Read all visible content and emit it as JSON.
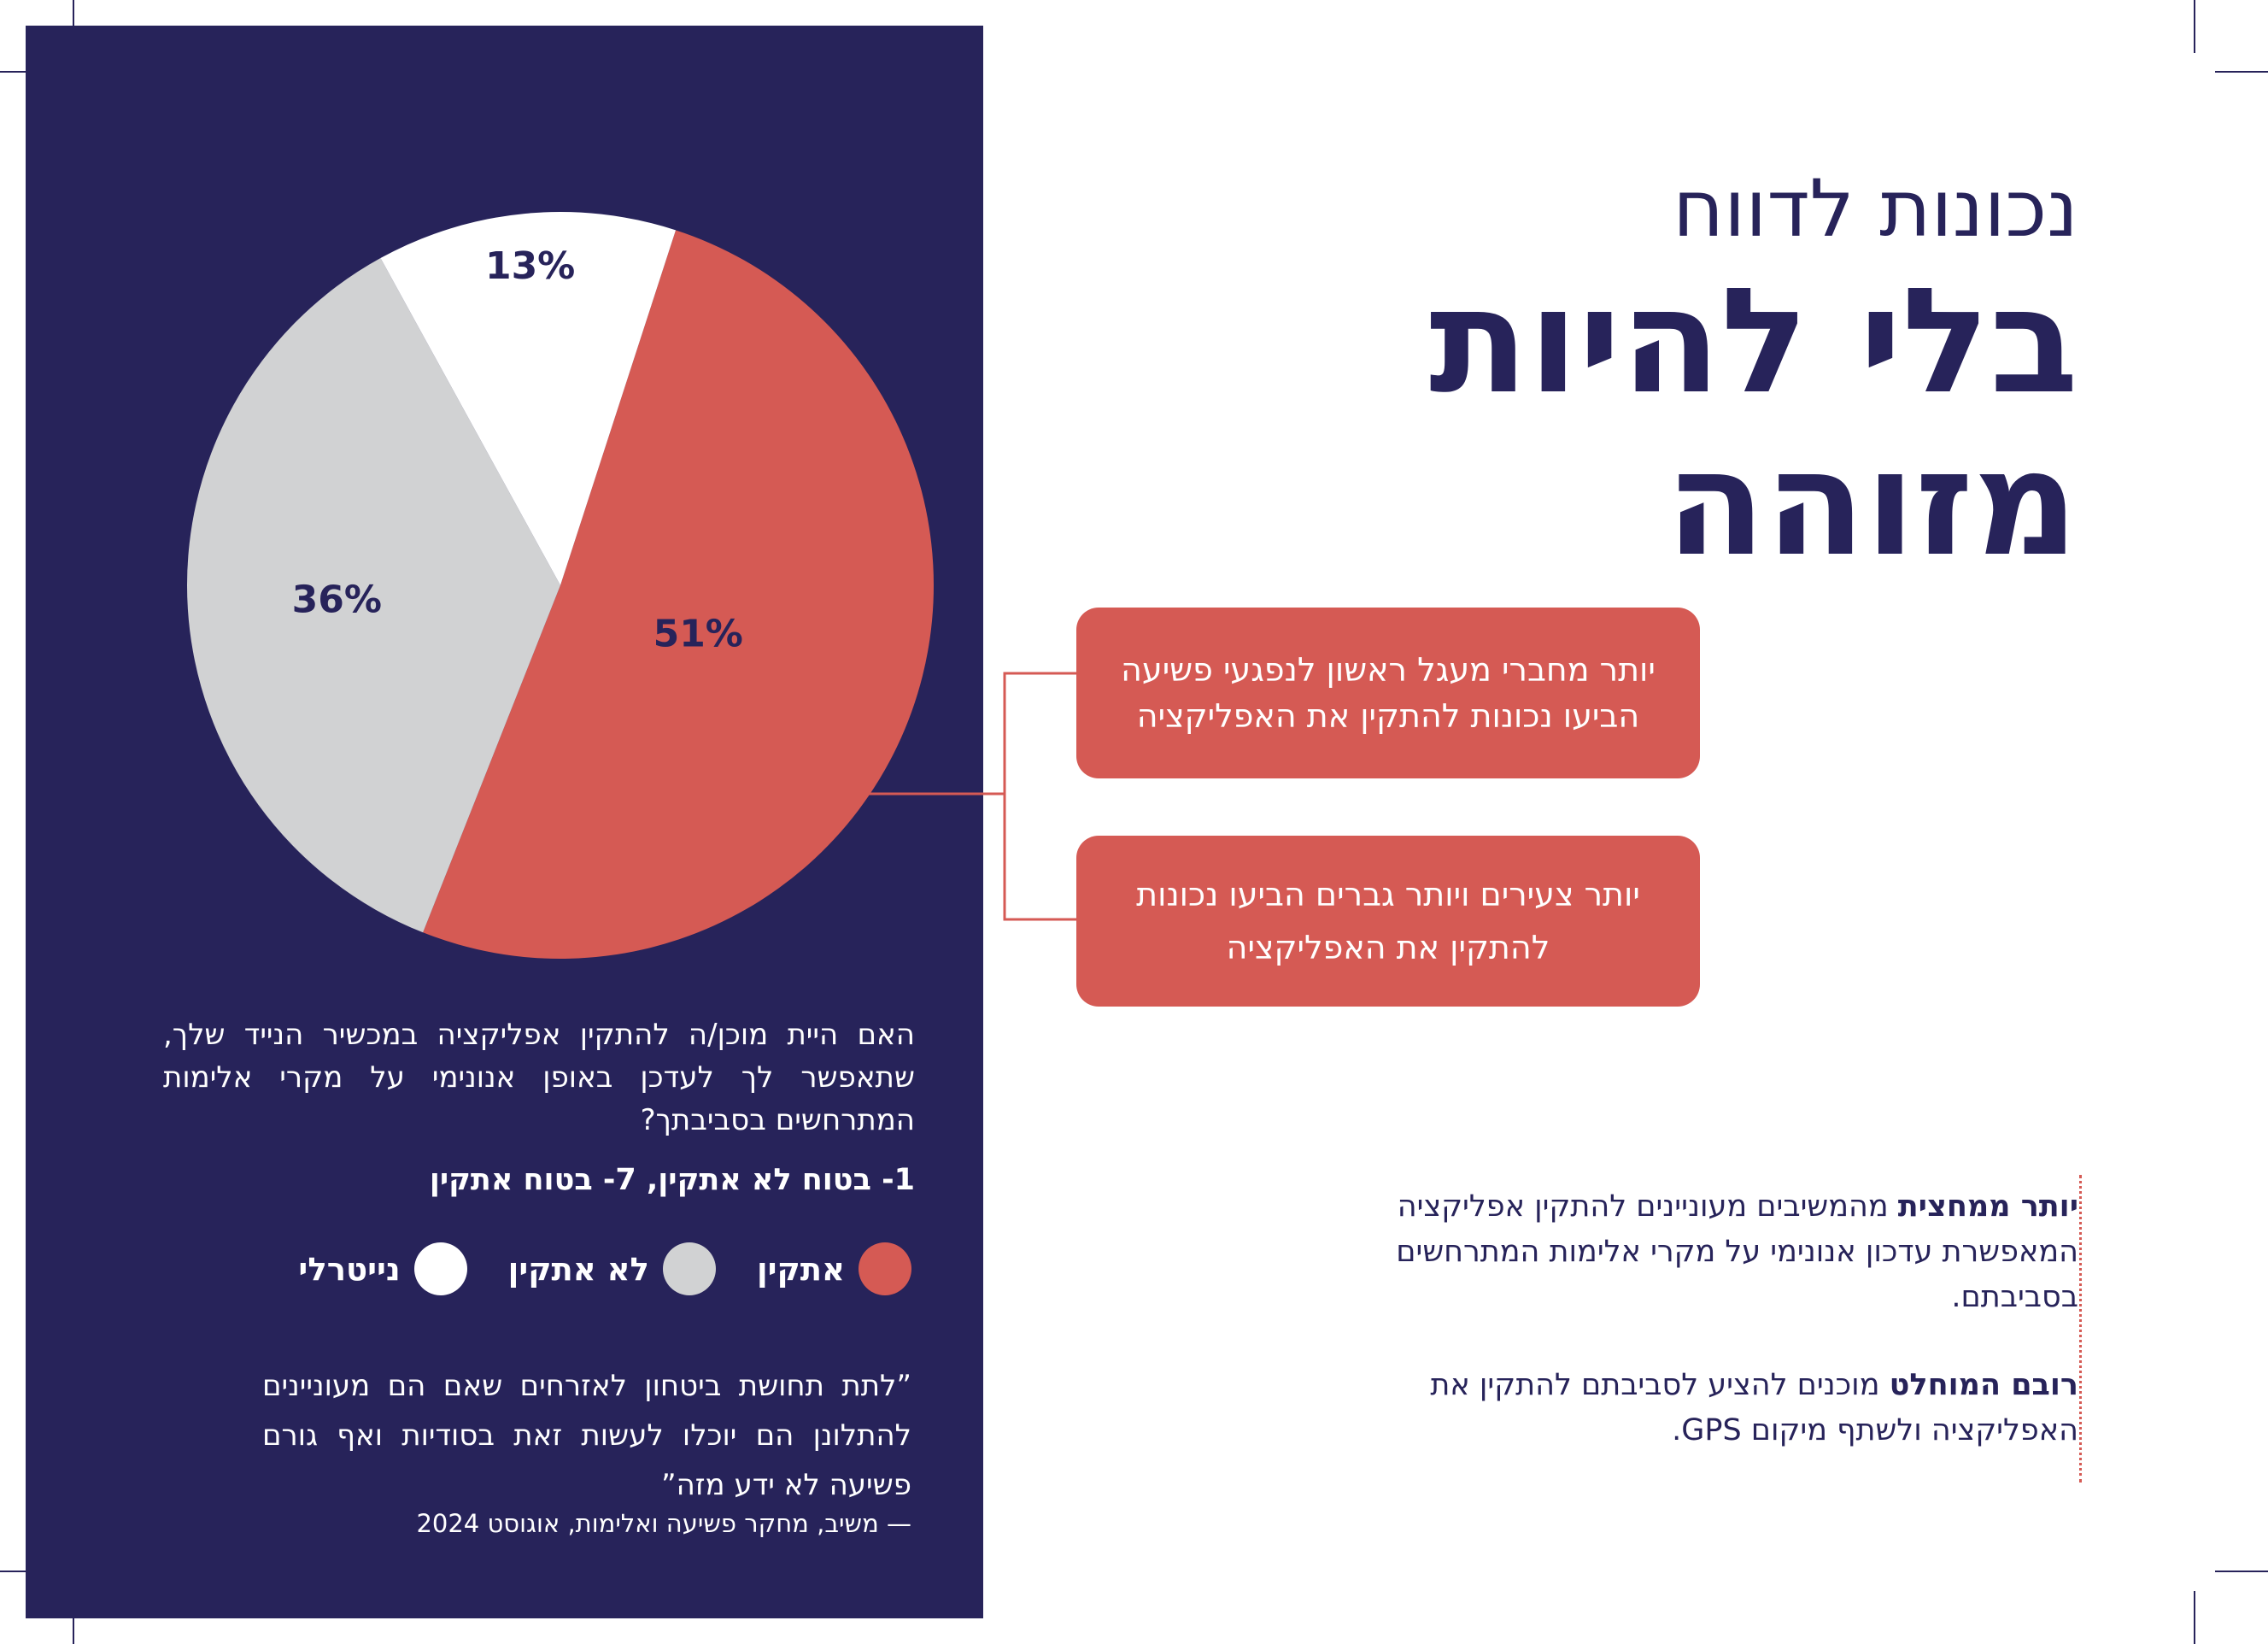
{
  "title": {
    "small": "נכונות לדווח",
    "big_line1": "בלי להיות",
    "big_line2": "מזוהה"
  },
  "colors": {
    "navy": "#27235a",
    "red": "#d55a54",
    "gray": "#d1d2d3",
    "white": "#ffffff"
  },
  "chart_data": {
    "type": "pie",
    "categories": [
      "אתקין",
      "לא אתקין",
      "נייטרלי"
    ],
    "values": [
      51,
      36,
      13
    ],
    "value_labels": [
      "51%",
      "36%",
      "13%"
    ],
    "colors": [
      "#d55a54",
      "#d1d2d3",
      "#ffffff"
    ],
    "legend_placement": "bottom"
  },
  "question": {
    "text": "האם היית מוכן/ה להתקין אפליקציה במכשיר הנייד שלך, שתאפשר לך לעדכן באופן אנונימי על מקרי אלימות המתרחשים בסביבתך?",
    "scale": "1- בטוח לא אתקין, 7- בטוח אתקין"
  },
  "legend": [
    {
      "label": "אתקין",
      "color": "#d55a54"
    },
    {
      "label": "לא אתקין",
      "color": "#d1d2d3"
    },
    {
      "label": "נייטרלי",
      "color": "#ffffff"
    }
  ],
  "quote": {
    "text": "”לתת תחושת ביטחון לאזרחים שאם הם מעוניינים להתלונן הם יוכלו לעשות זאת בסודיות ואף גורם פשיעה לא ידע מזה”",
    "source": "— משיב, מחקר פשיעה ואלימות, אוגוסט 2024"
  },
  "callouts": [
    {
      "text": "יותר מחברי מעגל ראשון לנפגעי פשיעה הביעו נכונות להתקין את האפליקציה"
    },
    {
      "text": "יותר צעירים ויותר גברים הביעו נכונות להתקין את האפליקציה"
    }
  ],
  "notes": [
    {
      "bold": "יותר ממחצית",
      "rest": " מהמשיבים מעוניינים להתקין אפליקציה המאפשרת עדכון אנונימי על מקרי אלימות המתרחשים בסביבתם."
    },
    {
      "bold": "רובם המוחלט",
      "rest": " מוכנים להציע לסביבתם להתקין את האפליקציה ולשתף מיקום GPS."
    }
  ]
}
